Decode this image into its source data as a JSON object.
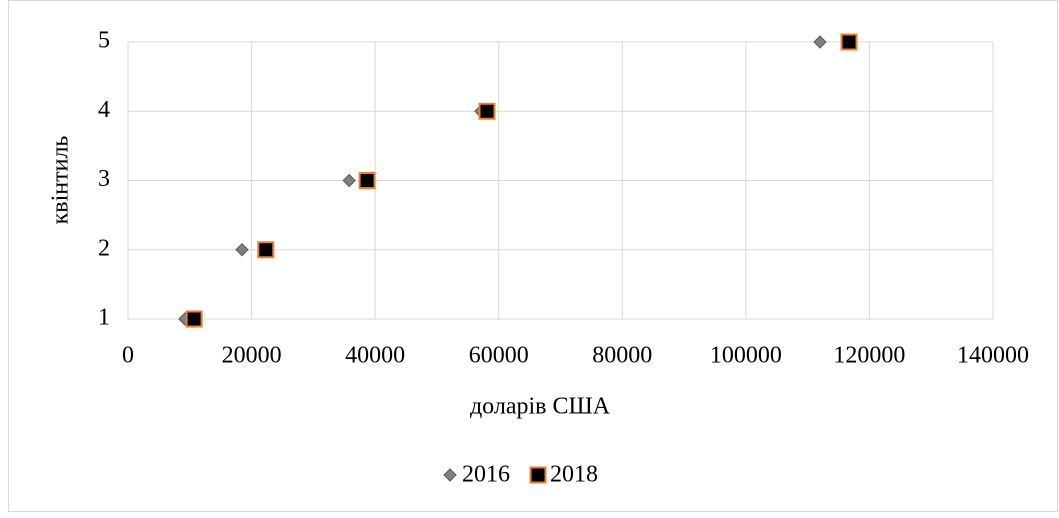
{
  "chart_data": {
    "type": "scatter",
    "xlabel": "доларів США",
    "ylabel": "квінтиль",
    "xlim": [
      0,
      140000
    ],
    "xticks": [
      0,
      20000,
      40000,
      60000,
      80000,
      100000,
      120000,
      140000
    ],
    "ylim": [
      1,
      5
    ],
    "yticks": [
      1,
      2,
      3,
      4,
      5
    ],
    "grid": true,
    "legend": "bottom",
    "series": [
      {
        "name": "2016",
        "color": "#7f7f7f",
        "marker": "diamond",
        "x": [
          9200,
          18450,
          35800,
          57100,
          112000
        ],
        "values": [
          1,
          2,
          3,
          4,
          5
        ]
      },
      {
        "name": "2018",
        "color": "#000000",
        "edge": "#ed7d31",
        "marker": "square",
        "x": [
          10700,
          22300,
          38700,
          58100,
          116700
        ],
        "values": [
          1,
          2,
          3,
          4,
          5
        ]
      }
    ]
  }
}
